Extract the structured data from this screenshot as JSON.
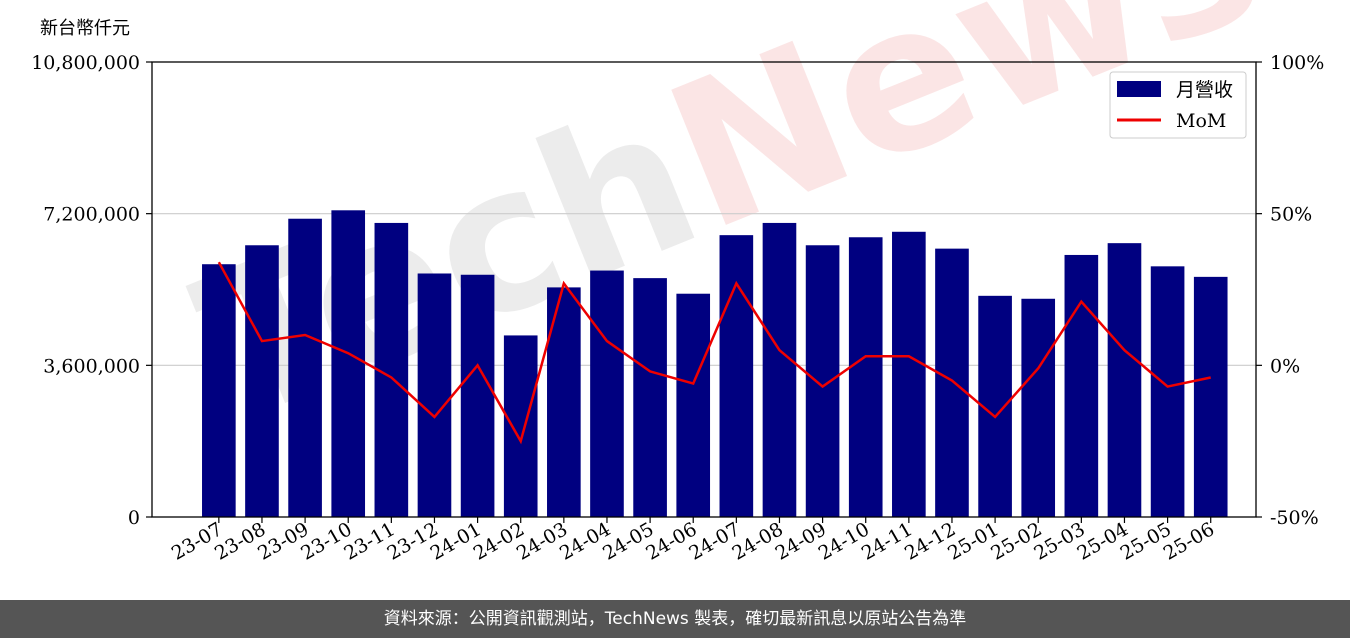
{
  "unit_label": "新台幣仟元",
  "footer_text": "資料來源：公開資訊觀測站，TechNews 製表，確切最新訊息以原站公告為準",
  "watermark": {
    "tech": "Tech",
    "news": "News"
  },
  "colors": {
    "bar": "#000080",
    "line": "#ee0000",
    "grid": "#cccccc",
    "footer_bg": "#555555"
  },
  "chart_data": {
    "type": "bar",
    "categories": [
      "23-07",
      "23-08",
      "23-09",
      "23-10",
      "23-11",
      "23-12",
      "24-01",
      "24-02",
      "24-03",
      "24-04",
      "24-05",
      "24-06",
      "24-07",
      "24-08",
      "24-09",
      "24-10",
      "24-11",
      "24-12",
      "25-01",
      "25-02",
      "25-03",
      "25-04",
      "25-05",
      "25-06"
    ],
    "series": [
      {
        "name": "月營收",
        "axis": "left",
        "type": "bar",
        "values": [
          6000000,
          6450000,
          7080000,
          7280000,
          6980000,
          5780000,
          5750000,
          4310000,
          5450000,
          5850000,
          5670000,
          5300000,
          6690000,
          6980000,
          6450000,
          6640000,
          6770000,
          6370000,
          5250000,
          5180000,
          6220000,
          6500000,
          5950000,
          5700000
        ]
      },
      {
        "name": "MoM",
        "axis": "right",
        "type": "line",
        "values": [
          34,
          8,
          10,
          4,
          -4,
          -17,
          0,
          -25,
          27,
          8,
          -2,
          -6,
          27,
          5,
          -7,
          3,
          3,
          -5,
          -17,
          -1,
          21,
          5,
          -7,
          -4
        ]
      }
    ],
    "y_left": {
      "min": 0,
      "max": 10800000,
      "ticks": [
        "0",
        "3,600,000",
        "7,200,000",
        "10,800,000"
      ],
      "tick_values": [
        0,
        3600000,
        7200000,
        10800000
      ]
    },
    "y_right": {
      "min": -50,
      "max": 100,
      "ticks": [
        "-50%",
        "0%",
        "50%",
        "100%"
      ],
      "tick_values": [
        -50,
        0,
        50,
        100
      ]
    },
    "grid": true,
    "legend": {
      "position": "top-right",
      "entries": [
        "月營收",
        "MoM"
      ]
    }
  }
}
